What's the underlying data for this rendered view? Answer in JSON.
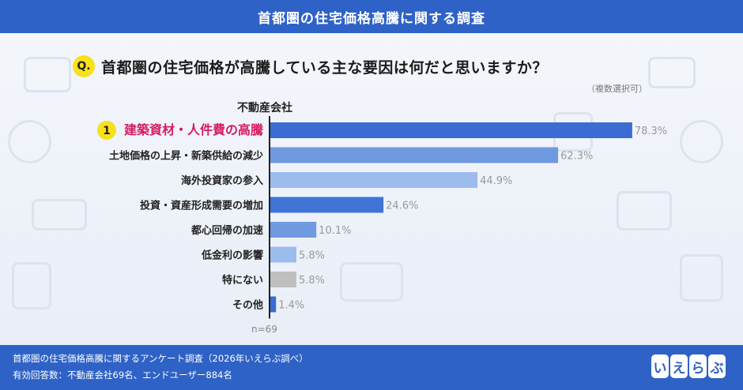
{
  "header": {
    "title": "首都圏の住宅価格高騰に関する調査"
  },
  "question": {
    "badge": "Q.",
    "text": "首都圏の住宅価格が高騰している主な要因は何だと思いますか？",
    "note": "（複数選択可）"
  },
  "group_label": "不動産会社",
  "top_rank": "1",
  "chart_data": {
    "type": "bar",
    "orientation": "horizontal",
    "title": "",
    "xlabel": "",
    "ylabel": "",
    "categories": [
      "建築資材・人件費の高騰",
      "土地価格の上昇・新築供給の減少",
      "海外投資家の参入",
      "投資・資産形成需要の増加",
      "都心回帰の加速",
      "低金利の影響",
      "特にない",
      "その他"
    ],
    "values": [
      78.3,
      62.3,
      44.9,
      24.6,
      10.1,
      5.8,
      5.8,
      1.4
    ],
    "value_labels": [
      "78.3%",
      "62.3%",
      "44.9%",
      "24.6%",
      "10.1%",
      "5.8%",
      "5.8%",
      "1.4%"
    ],
    "xlim": [
      0,
      100
    ],
    "bar_colors": [
      "#3a6cd1",
      "#6f9ae0",
      "#9dbcee",
      "#3f73d6",
      "#6f9ae0",
      "#9dbcee",
      "#bfbfbf",
      "#3a6cd1"
    ],
    "highlight_index": 0,
    "highlight_color": "#d81b60",
    "sample_size": "n=69",
    "grid": false
  },
  "footer": {
    "line1": "首都圏の住宅価格高騰に関するアンケート調査（2026年いえらぶ調べ）",
    "line2": "有効回答数：不動産会社69名、エンドユーザー884名"
  },
  "logo": [
    "い",
    "え",
    "ら",
    "ぶ"
  ]
}
